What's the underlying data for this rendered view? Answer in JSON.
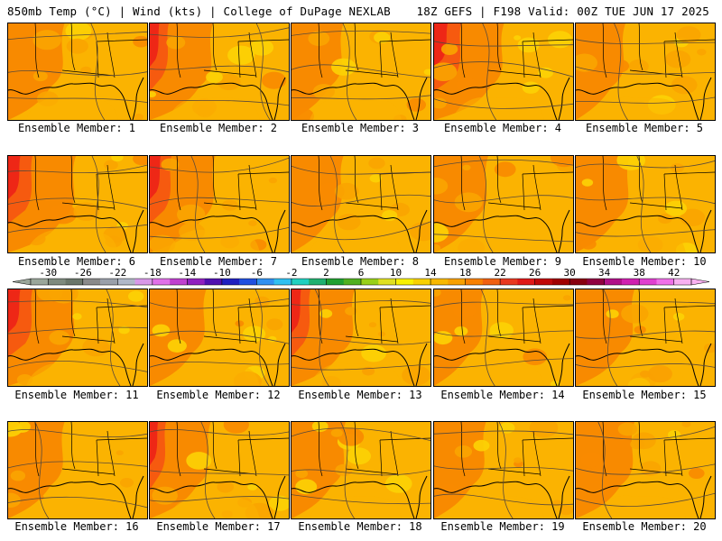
{
  "header": {
    "left": "850mb Temp (°C) | Wind (kts) | College of DuPage NEXLAB",
    "right": "18Z GEFS | F198 Valid: 00Z TUE JUN 17 2025"
  },
  "caption_prefix": "Ensemble Member: ",
  "members": [
    {
      "label": "Ensemble Member: 1",
      "warmth": 0.45
    },
    {
      "label": "Ensemble Member: 2",
      "warmth": 0.6
    },
    {
      "label": "Ensemble Member: 3",
      "warmth": 0.35
    },
    {
      "label": "Ensemble Member: 4",
      "warmth": 0.75
    },
    {
      "label": "Ensemble Member: 5",
      "warmth": 0.3
    },
    {
      "label": "Ensemble Member: 6",
      "warmth": 0.7
    },
    {
      "label": "Ensemble Member: 7",
      "warmth": 0.65
    },
    {
      "label": "Ensemble Member: 8",
      "warmth": 0.35
    },
    {
      "label": "Ensemble Member: 9",
      "warmth": 0.4
    },
    {
      "label": "Ensemble Member: 10",
      "warmth": 0.4
    },
    {
      "label": "Ensemble Member: 11",
      "warmth": 0.7
    },
    {
      "label": "Ensemble Member: 12",
      "warmth": 0.45
    },
    {
      "label": "Ensemble Member: 13",
      "warmth": 0.6
    },
    {
      "label": "Ensemble Member: 14",
      "warmth": 0.3
    },
    {
      "label": "Ensemble Member: 15",
      "warmth": 0.5
    },
    {
      "label": "Ensemble Member: 16",
      "warmth": 0.45
    },
    {
      "label": "Ensemble Member: 17",
      "warmth": 0.55
    },
    {
      "label": "Ensemble Member: 18",
      "warmth": 0.4
    },
    {
      "label": "Ensemble Member: 19",
      "warmth": 0.35
    },
    {
      "label": "Ensemble Member: 20",
      "warmth": 0.5
    }
  ],
  "colorbar": {
    "tick_labels": [
      "-30",
      "-26",
      "-22",
      "-18",
      "-14",
      "-10",
      "-6",
      "-2",
      "2",
      "6",
      "10",
      "14",
      "18",
      "22",
      "26",
      "30",
      "34",
      "38",
      "42"
    ],
    "colors": [
      "#9aa69a",
      "#7e8a7e",
      "#6a766a",
      "#8a8a8a",
      "#9aa0aa",
      "#b0b8c8",
      "#d898e8",
      "#e070e8",
      "#c040d0",
      "#9020c0",
      "#5010b0",
      "#2020c0",
      "#2050e0",
      "#3090f0",
      "#30c0f0",
      "#20d0c0",
      "#20b070",
      "#20a030",
      "#50b020",
      "#98d018",
      "#e0e020",
      "#f8f000",
      "#f8d000",
      "#f8b800",
      "#f8a000",
      "#f88000",
      "#f06010",
      "#e83820",
      "#e01818",
      "#c00808",
      "#a00000",
      "#880010",
      "#900040",
      "#b01088",
      "#d020b0",
      "#e040d0",
      "#f070e8",
      "#f8b0f0"
    ]
  },
  "palette": {
    "yellow": "#fcd104",
    "gold": "#fbb301",
    "orange": "#f9a400",
    "dark_orange": "#f88a00",
    "red_orange": "#f65a0f",
    "red": "#ee2716",
    "border": "#000000",
    "contour": "#5a4a3a"
  }
}
